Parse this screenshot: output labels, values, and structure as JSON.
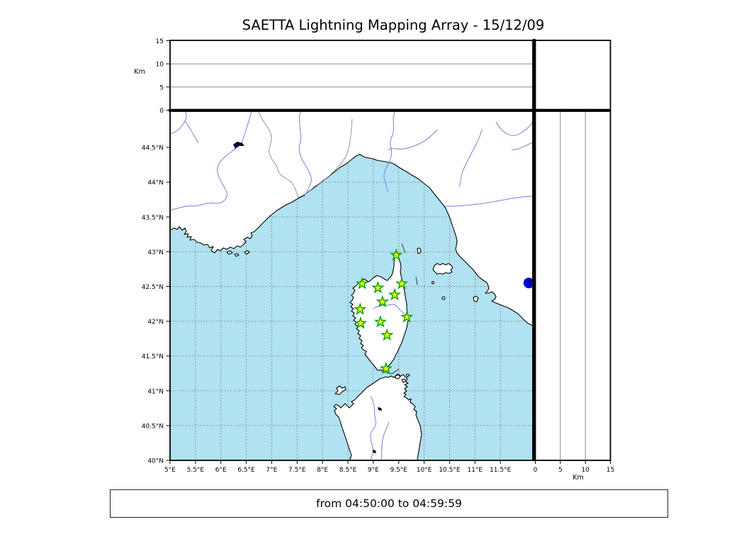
{
  "title": "SAETTA Lightning Mapping Array - 15/12/09",
  "footer": {
    "text": "from 04:50:00 to 04:59:59"
  },
  "chart_data": {
    "type": "scatter",
    "title": "SAETTA Lightning Mapping Array - 15/12/09",
    "time_window": "from 04:50:00 to 04:59:59",
    "map_panel": {
      "lon_range_deg_e": [
        5.0,
        12.14
      ],
      "lat_range_deg_n": [
        40.0,
        45.02
      ],
      "grid": "dashed 0.5 degree",
      "lon_ticks": [
        {
          "value": 5.0,
          "label": "5°E"
        },
        {
          "value": 5.5,
          "label": "5.5°E"
        },
        {
          "value": 6.0,
          "label": "6°E"
        },
        {
          "value": 6.5,
          "label": "6.5°E"
        },
        {
          "value": 7.0,
          "label": "7°E"
        },
        {
          "value": 7.5,
          "label": "7.5°E"
        },
        {
          "value": 8.0,
          "label": "8°E"
        },
        {
          "value": 8.5,
          "label": "8.5°E"
        },
        {
          "value": 9.0,
          "label": "9°E"
        },
        {
          "value": 9.5,
          "label": "9.5°E"
        },
        {
          "value": 10.0,
          "label": "10°E"
        },
        {
          "value": 10.5,
          "label": "10.5°E"
        },
        {
          "value": 11.0,
          "label": "11°E"
        },
        {
          "value": 11.5,
          "label": "11.5°E"
        }
      ],
      "lat_ticks": [
        {
          "value": 40.0,
          "label": "40°N"
        },
        {
          "value": 40.5,
          "label": "40.5°N"
        },
        {
          "value": 41.0,
          "label": "41°N"
        },
        {
          "value": 41.5,
          "label": "41.5°N"
        },
        {
          "value": 42.0,
          "label": "42°N"
        },
        {
          "value": 42.5,
          "label": "42.5°N"
        },
        {
          "value": 43.0,
          "label": "43°N"
        },
        {
          "value": 43.5,
          "label": "43.5°N"
        },
        {
          "value": 44.0,
          "label": "44°N"
        },
        {
          "value": 44.5,
          "label": "44.5°N"
        }
      ]
    },
    "altitude_panels": {
      "label": "Km",
      "range_km": [
        0,
        15
      ],
      "km_ticks": [
        {
          "value": 0,
          "label": "0"
        },
        {
          "value": 5,
          "label": "5"
        },
        {
          "value": 10,
          "label": "10"
        },
        {
          "value": 15,
          "label": "15"
        }
      ],
      "grid_km": [
        5,
        10
      ],
      "top_panel_points": [],
      "right_panel_points": []
    },
    "stations": [
      {
        "lon": 9.45,
        "lat": 42.95
      },
      {
        "lon": 8.78,
        "lat": 42.54
      },
      {
        "lon": 9.09,
        "lat": 42.48
      },
      {
        "lon": 9.56,
        "lat": 42.54
      },
      {
        "lon": 9.42,
        "lat": 42.38
      },
      {
        "lon": 9.18,
        "lat": 42.28
      },
      {
        "lon": 8.74,
        "lat": 42.17
      },
      {
        "lon": 9.66,
        "lat": 42.06
      },
      {
        "lon": 8.75,
        "lat": 41.97
      },
      {
        "lon": 9.14,
        "lat": 41.99
      },
      {
        "lon": 9.27,
        "lat": 41.8
      },
      {
        "lon": 9.25,
        "lat": 41.32
      }
    ],
    "event_points": [
      {
        "lon": 12.06,
        "lat": 42.55,
        "color": "#0000cc"
      }
    ],
    "colors": {
      "sea": "#b0e2f1",
      "land": "#ffffff",
      "coast": "#000000",
      "river": "#7d7ddd",
      "grid": "#8a8a8a",
      "station_fill": "#ffff00",
      "station_edge": "#00a000",
      "event_point": "#0000cc"
    }
  }
}
